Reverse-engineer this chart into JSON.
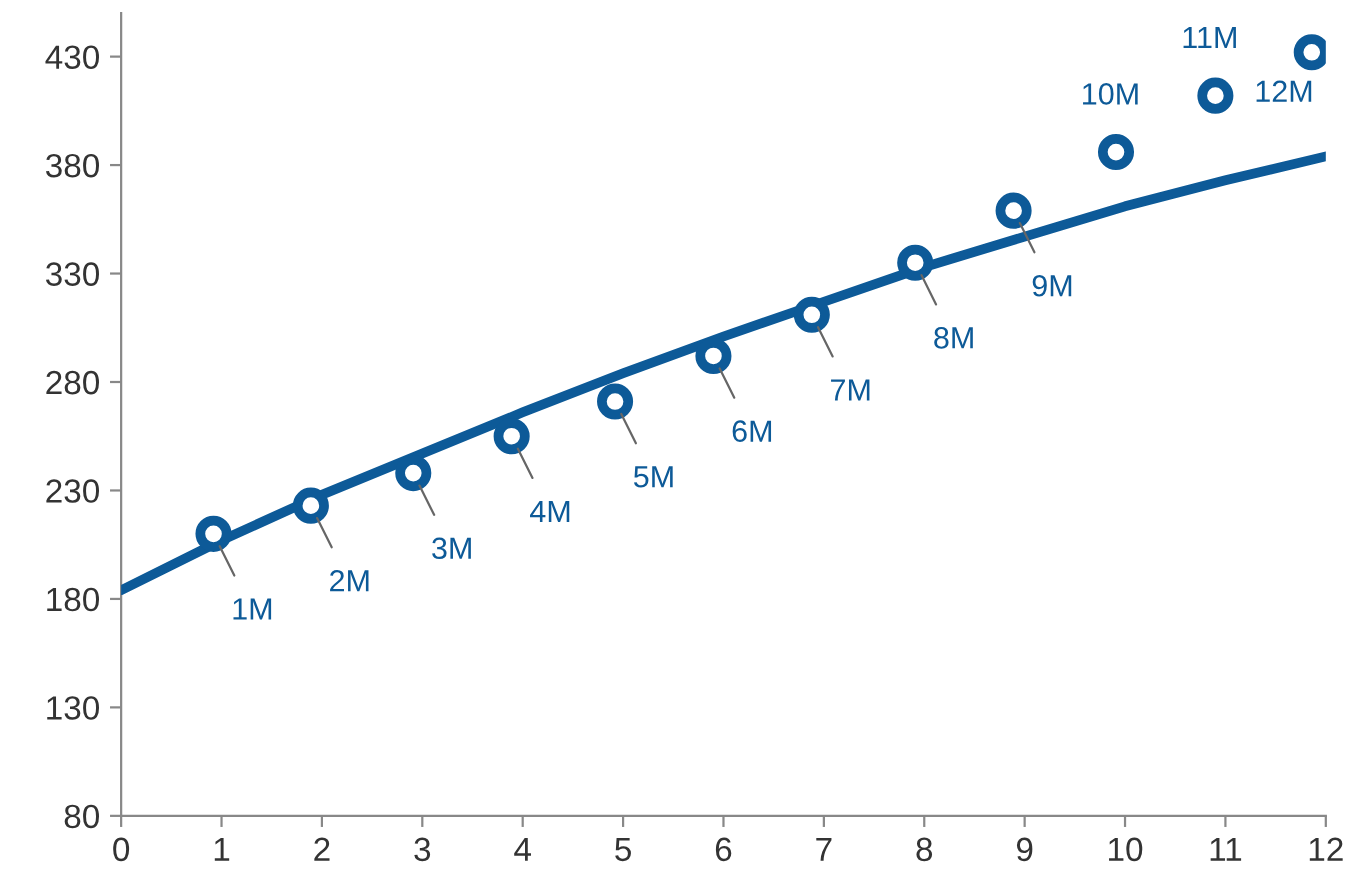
{
  "chart_data": {
    "type": "scatter",
    "grid": false,
    "legend": false,
    "xlim": [
      0,
      12
    ],
    "ylim": [
      80,
      450
    ],
    "xticks": [
      0,
      1,
      2,
      3,
      4,
      5,
      6,
      7,
      8,
      9,
      10,
      11,
      12
    ],
    "yticks": [
      80,
      130,
      180,
      230,
      280,
      330,
      380,
      430
    ],
    "series": [
      {
        "marker": "circle",
        "color": "#0d5a98",
        "x": [
          0.92,
          1.89,
          2.91,
          3.89,
          4.92,
          5.9,
          6.88,
          7.91,
          8.89,
          9.91,
          10.9,
          11.86
        ],
        "values": [
          210,
          223,
          238,
          255,
          271,
          292,
          311,
          335,
          359,
          386,
          412,
          432
        ]
      },
      {
        "type": "line",
        "color": "#0d5a98",
        "line_style": "solid",
        "x": [
          0,
          1,
          2,
          3,
          4,
          5,
          6,
          7,
          8,
          9,
          10,
          11,
          12
        ],
        "values": [
          184,
          207,
          228,
          247,
          266,
          284,
          301,
          317,
          333,
          347,
          361,
          373,
          384
        ]
      }
    ],
    "annotations": [
      {
        "text": "1M",
        "x": 0.92,
        "y": 210
      },
      {
        "text": "2M",
        "x": 1.89,
        "y": 223
      },
      {
        "text": "3M",
        "x": 2.91,
        "y": 238
      },
      {
        "text": "4M",
        "x": 3.89,
        "y": 255
      },
      {
        "text": "5M",
        "x": 4.92,
        "y": 271
      },
      {
        "text": "6M",
        "x": 5.9,
        "y": 292
      },
      {
        "text": "7M",
        "x": 6.88,
        "y": 311
      },
      {
        "text": "8M",
        "x": 7.91,
        "y": 335
      },
      {
        "text": "9M",
        "x": 8.89,
        "y": 359
      },
      {
        "text": "10M",
        "x": 9.91,
        "y": 386
      },
      {
        "text": "11M",
        "x": 10.9,
        "y": 412
      },
      {
        "text": "12M",
        "x": 11.86,
        "y": 432
      }
    ]
  }
}
